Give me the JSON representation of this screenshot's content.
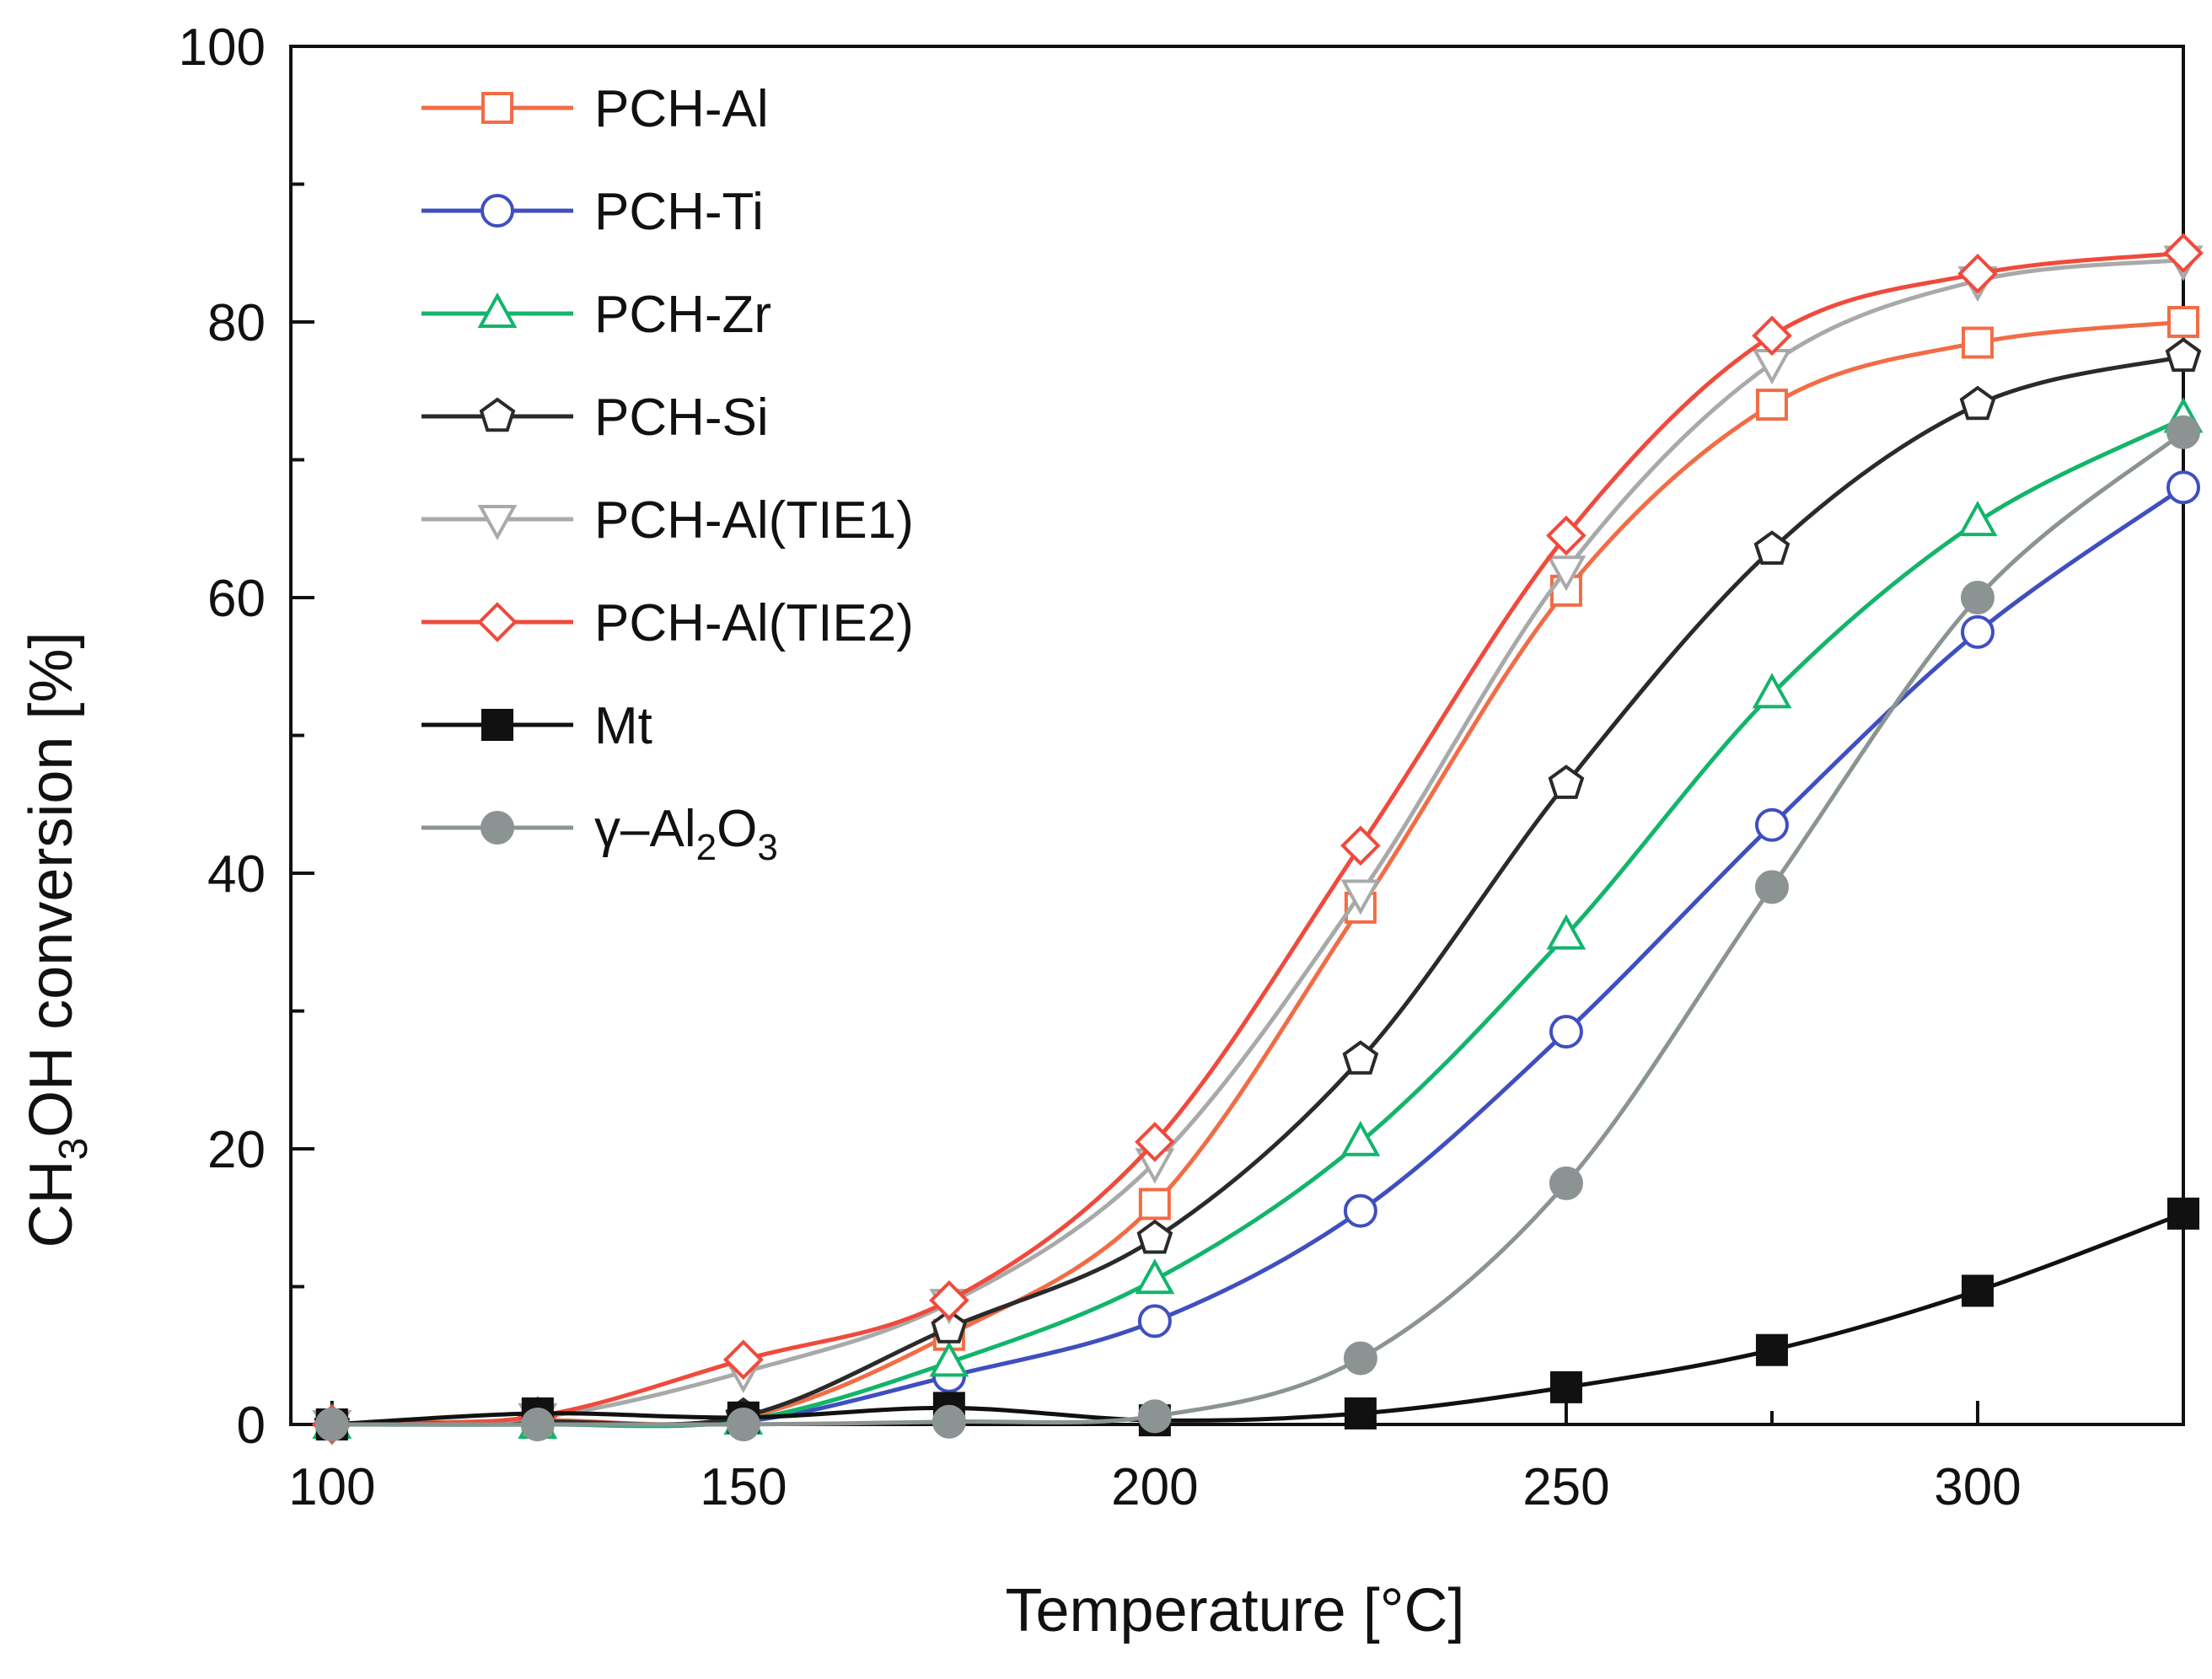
{
  "chart_data": {
    "type": "line",
    "xlabel": "Temperature [°C]",
    "ylabel_parts": [
      "CH",
      "3",
      "OH conversion [%]"
    ],
    "xlim": [
      95,
      325
    ],
    "ylim": [
      0,
      100
    ],
    "xticks": [
      100,
      150,
      200,
      250,
      300
    ],
    "yticks": [
      0,
      20,
      40,
      60,
      80,
      100
    ],
    "legend_position": "top-left",
    "series": [
      {
        "name": "PCH-Al",
        "name_parts": [
          {
            "t": "PCH-Al"
          }
        ],
        "marker": "square",
        "filled": false,
        "color": "#f26c45",
        "x": [
          100,
          125,
          150,
          175,
          200,
          225,
          250,
          275,
          300,
          325
        ],
        "y": [
          0,
          0.3,
          0.5,
          6.5,
          16,
          37.5,
          60.5,
          74,
          78.5,
          80
        ]
      },
      {
        "name": "PCH-Ti",
        "name_parts": [
          {
            "t": "PCH-Ti"
          }
        ],
        "marker": "circle",
        "filled": false,
        "color": "#3f4fbf",
        "x": [
          100,
          125,
          150,
          175,
          200,
          225,
          250,
          275,
          300,
          325
        ],
        "y": [
          0,
          0.1,
          0.2,
          3.5,
          7.5,
          15.5,
          28.5,
          43.5,
          57.5,
          68
        ]
      },
      {
        "name": "PCH-Zr",
        "name_parts": [
          {
            "t": "PCH-Zr"
          }
        ],
        "marker": "triangle-up",
        "filled": false,
        "color": "#12b56b",
        "x": [
          100,
          125,
          150,
          175,
          200,
          225,
          250,
          275,
          300,
          325
        ],
        "y": [
          0,
          0,
          0.3,
          4.5,
          10.5,
          20.5,
          35.5,
          53,
          65.5,
          73
        ]
      },
      {
        "name": "PCH-Si",
        "name_parts": [
          {
            "t": "PCH-Si"
          }
        ],
        "marker": "pentagon",
        "filled": false,
        "color": "#2a2a2a",
        "x": [
          100,
          125,
          150,
          175,
          200,
          225,
          250,
          275,
          300,
          325
        ],
        "y": [
          0,
          0.2,
          0.6,
          7,
          13.5,
          26.5,
          46.5,
          63.5,
          74,
          77.5
        ]
      },
      {
        "name": "PCH-Al(TIE1)",
        "name_parts": [
          {
            "t": "PCH-Al(TIE1)"
          }
        ],
        "marker": "triangle-down",
        "filled": false,
        "color": "#a8aaa9",
        "x": [
          100,
          125,
          150,
          175,
          200,
          225,
          250,
          275,
          300,
          325
        ],
        "y": [
          0,
          0.5,
          3.8,
          8.8,
          19,
          38.5,
          62,
          77,
          83,
          84.5
        ]
      },
      {
        "name": "PCH-Al(TIE2)",
        "name_parts": [
          {
            "t": "PCH-Al(TIE2)"
          }
        ],
        "marker": "diamond",
        "filled": false,
        "color": "#f04a3c",
        "x": [
          100,
          125,
          150,
          175,
          200,
          225,
          250,
          275,
          300,
          325
        ],
        "y": [
          0,
          0.6,
          4.7,
          9,
          20.5,
          42,
          64.5,
          79,
          83.5,
          85
        ]
      },
      {
        "name": "Mt",
        "name_parts": [
          {
            "t": "Mt"
          }
        ],
        "marker": "square",
        "filled": true,
        "color": "#111111",
        "x": [
          100,
          125,
          150,
          175,
          200,
          225,
          250,
          275,
          300,
          325
        ],
        "y": [
          0,
          0.8,
          0.5,
          1.2,
          0.3,
          0.8,
          2.7,
          5.4,
          9.7,
          15.3
        ]
      },
      {
        "name": "γ–Al2O3",
        "name_parts": [
          {
            "t": "γ–Al"
          },
          {
            "t": "2",
            "sub": true
          },
          {
            "t": "O"
          },
          {
            "t": "3",
            "sub": true
          }
        ],
        "marker": "circle",
        "filled": true,
        "color": "#8c9493",
        "x": [
          100,
          125,
          150,
          175,
          200,
          225,
          250,
          275,
          300,
          325
        ],
        "y": [
          0,
          0,
          0,
          0.2,
          0.6,
          4.8,
          17.5,
          39,
          60,
          72
        ]
      }
    ]
  }
}
